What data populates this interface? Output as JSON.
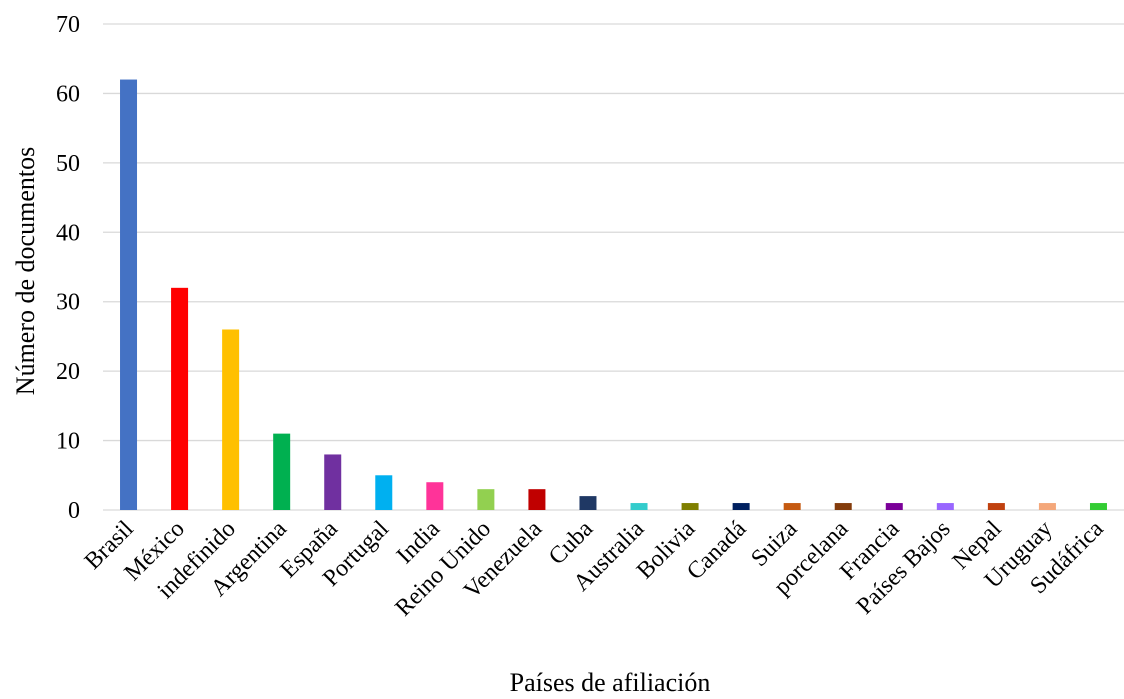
{
  "chart_data": {
    "type": "bar",
    "title": "",
    "xlabel": "Países de afiliación",
    "ylabel": "Número de documentos",
    "ylim": [
      0,
      70
    ],
    "yticks": [
      0,
      10,
      20,
      30,
      40,
      50,
      60,
      70
    ],
    "grid": true,
    "legend": "none",
    "categories": [
      "Brasil",
      "México",
      "indefinido",
      "Argentina",
      "España",
      "Portugal",
      "India",
      "Reino Unido",
      "Venezuela",
      "Cuba",
      "Australia",
      "Bolivia",
      "Canadá",
      "Suiza",
      "porcelana",
      "Francia",
      "Países Bajos",
      "Nepal",
      "Uruguay",
      "Sudáfrica"
    ],
    "values": [
      62,
      32,
      26,
      11,
      8,
      5,
      4,
      3,
      3,
      2,
      1,
      1,
      1,
      1,
      1,
      1,
      1,
      1,
      1,
      1
    ],
    "colors": [
      "#4472c4",
      "#ff0000",
      "#ffc000",
      "#00b050",
      "#7030a0",
      "#00b0f0",
      "#ff3399",
      "#92d050",
      "#c00000",
      "#1f3864",
      "#33cccc",
      "#7f7f00",
      "#002060",
      "#c55a11",
      "#843c0c",
      "#7b0099",
      "#9966ff",
      "#c0410f",
      "#f4a77a",
      "#33cc33"
    ]
  }
}
